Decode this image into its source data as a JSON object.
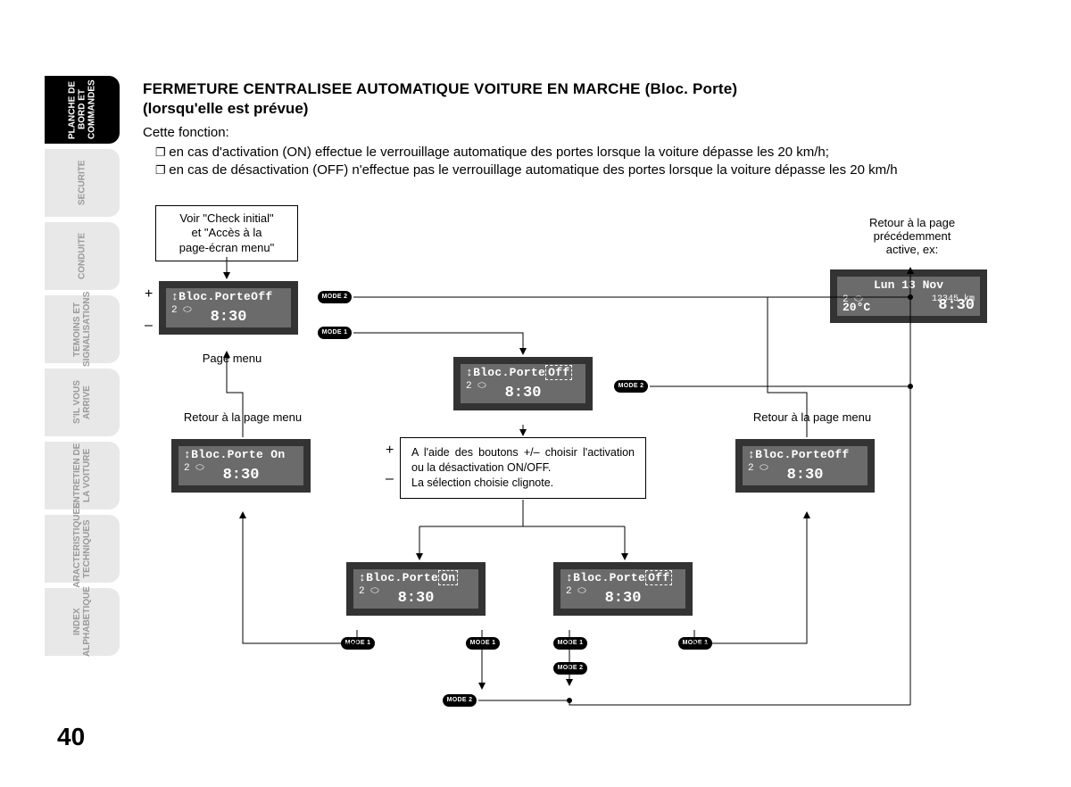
{
  "page_number": "40",
  "tabs": [
    {
      "label": "PLANCHE DE BORD ET COMMANDES",
      "active": true
    },
    {
      "label": "SECURITE",
      "active": false
    },
    {
      "label": "CONDUITE",
      "active": false
    },
    {
      "label": "TEMOINS ET SIGNALISATIONS",
      "active": false
    },
    {
      "label": "S'IL VOUS ARRIVE",
      "active": false
    },
    {
      "label": "ENTRETIEN DE LA VOITURE",
      "active": false
    },
    {
      "label": "CARACTERISTIQUES TECHNIQUES",
      "active": false
    },
    {
      "label": "INDEX ALPHABETIQUE",
      "active": false
    }
  ],
  "title": "FERMETURE CENTRALISEE AUTOMATIQUE VOITURE EN MARCHE (Bloc. Porte)",
  "subtitle": "(lorsqu'elle est prévue)",
  "intro": "Cette fonction:",
  "bullets": [
    "en cas d'activation (ON) effectue le verrouillage automatique des portes lorsque la voiture dépasse les 20 km/h;",
    "en cas de désactivation (OFF) n'effectue pas le verrouillage automatique des portes lorsque la voiture dépasse les 20 km/h"
  ],
  "flow": {
    "note_initial": "Voir \"Check initial\"\net \"Accès à la\npage-écran menu\"",
    "note_return_page": "Retour à la page\nprécédemment\nactive, ex:",
    "note_return_menu_left": "Retour à la page menu",
    "note_return_menu_right": "Retour à la page menu",
    "instr": "A l'aide des boutons +/– choisir l'activation ou la désactivation ON/OFF.\nLa sélection choisie clignote.",
    "caption_pagemenu": "Page menu",
    "mode1": "MODE 1",
    "mode2": "MODE 2",
    "plus": "+",
    "minus": "–",
    "lcd_common": {
      "gear": "2 ⬭",
      "time": "8:30"
    },
    "lcd_menu": "↕Bloc.PorteOff",
    "lcd_center_line": "↕Bloc.Porte",
    "lcd_center_val": "Off",
    "lcd_on_full": "↕Bloc.Porte On",
    "lcd_off_full": "↕Bloc.PorteOff",
    "lcd_choice_line": "↕Bloc.Porte",
    "lcd_choice_on": "On",
    "lcd_choice_off": "Off",
    "lcd_return": {
      "date": "Lun 13 Nov",
      "gear": "2 ⬭",
      "odo": "12345 km",
      "temp": "20°C",
      "time": "8:30"
    }
  }
}
